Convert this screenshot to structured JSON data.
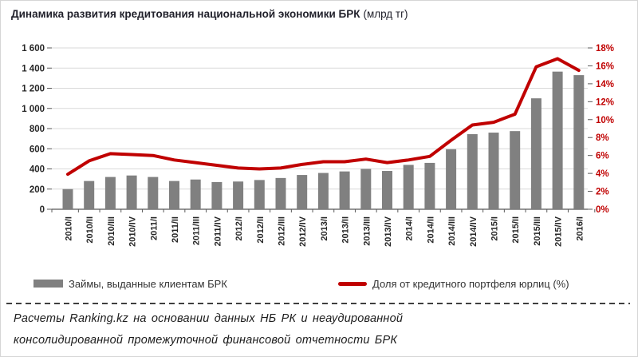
{
  "title": {
    "main": "Динамика развития кредитования национальной экономики БРК",
    "unit": "(млрд тг)"
  },
  "chart_data": {
    "type": "bar",
    "categories": [
      "2010/I",
      "2010/II",
      "2010/III",
      "2010/IV",
      "2011/I",
      "2011/II",
      "2011/III",
      "2011/IV",
      "2012/I",
      "2012/II",
      "2012/III",
      "2012/IV",
      "2013/I",
      "2013/II",
      "2013/III",
      "2013/IV",
      "2014/I",
      "2014/II",
      "2014/III",
      "2014/IV",
      "2015/I",
      "2015/II",
      "2015/III",
      "2015/IV",
      "2016/I"
    ],
    "series": [
      {
        "name": "Займы, выданные клиентам БРК",
        "type": "bar",
        "axis": "left",
        "values": [
          200,
          280,
          320,
          335,
          320,
          280,
          295,
          270,
          275,
          290,
          310,
          340,
          360,
          375,
          400,
          380,
          440,
          460,
          595,
          745,
          760,
          775,
          1100,
          1365,
          1330
        ]
      },
      {
        "name": "Доля от кредитного портфеля юрлиц (%)",
        "type": "line",
        "axis": "right",
        "values": [
          3.9,
          5.4,
          6.2,
          6.1,
          6.0,
          5.5,
          5.2,
          4.9,
          4.6,
          4.5,
          4.6,
          5.0,
          5.3,
          5.3,
          5.6,
          5.2,
          5.5,
          5.9,
          7.7,
          9.4,
          9.7,
          10.6,
          15.9,
          16.8,
          15.5
        ]
      }
    ],
    "title": "Динамика развития кредитования национальной экономики БРК (млрд тг)",
    "xlabel": "",
    "ylabel": "",
    "left_axis": {
      "min": 0,
      "max": 1600,
      "step": 200,
      "tick_labels": [
        "0",
        "200",
        "400",
        "600",
        "800",
        "1 000",
        "1 200",
        "1 400",
        "1 600"
      ]
    },
    "right_axis": {
      "min": 0,
      "max": 18,
      "step": 2,
      "tick_labels": [
        "0%",
        "2%",
        "4%",
        "6%",
        "8%",
        "10%",
        "12%",
        "14%",
        "16%",
        "18%"
      ]
    },
    "grid": true,
    "legend_position": "bottom"
  },
  "legend": {
    "bars_label": "Займы, выданные клиентам БРК",
    "line_label": "Доля от кредитного портфеля юрлиц (%)"
  },
  "footer": {
    "line1": "Расчеты Ranking.kz на основании данных НБ РК и неаудированной",
    "line2": "консолидированной промежуточной  финансовой  отчетности БРК"
  },
  "colors": {
    "bar": "#808080",
    "line": "#c00000",
    "gridline": "#d9d9d9",
    "axis": "#595959",
    "tick_text": "#262626",
    "right_tick_text": "#c00000"
  }
}
